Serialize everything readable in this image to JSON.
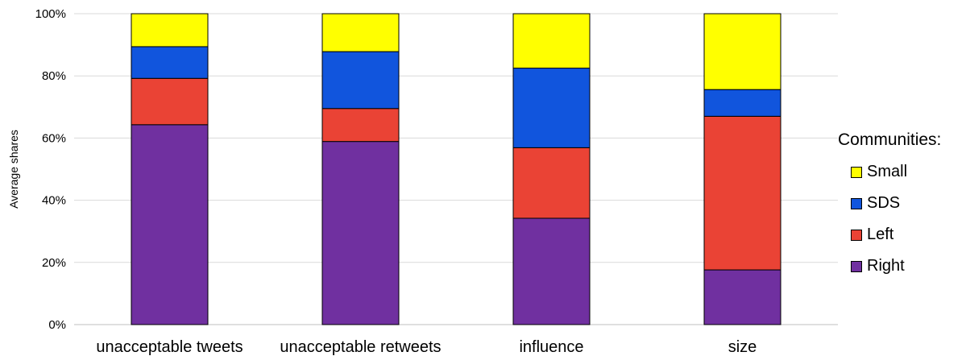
{
  "chart_data": {
    "type": "bar",
    "stacked": true,
    "normalized": true,
    "categories": [
      "unacceptable tweets",
      "unacceptable retweets",
      "influence",
      "size"
    ],
    "series": [
      {
        "name": "Right",
        "color": "#7030a0",
        "values": [
          64.3,
          58.9,
          34.2,
          17.6
        ]
      },
      {
        "name": "Left",
        "color": "#ea4335",
        "values": [
          14.9,
          10.6,
          22.7,
          49.4
        ]
      },
      {
        "name": "SDS",
        "color": "#1155dd",
        "values": [
          10.2,
          18.3,
          25.6,
          8.6
        ]
      },
      {
        "name": "Small",
        "color": "#ffff00",
        "values": [
          10.6,
          12.2,
          17.5,
          24.4
        ]
      }
    ],
    "ylabel": "Average shares",
    "ylim": [
      0,
      100
    ],
    "yticks": [
      "0%",
      "20%",
      "40%",
      "60%",
      "80%",
      "100%"
    ],
    "grid": true,
    "legend": {
      "title": "Communities:",
      "position": "right",
      "order": [
        "Small",
        "SDS",
        "Left",
        "Right"
      ]
    }
  }
}
